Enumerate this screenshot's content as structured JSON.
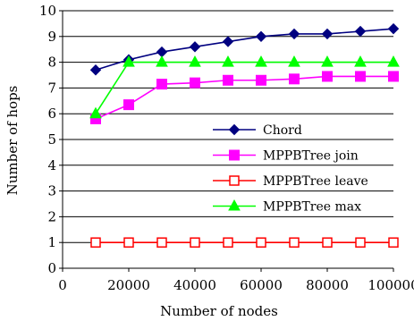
{
  "chart_data": {
    "type": "line",
    "title": "",
    "xlabel": "Number of nodes",
    "ylabel": "Number of hops",
    "xlim": [
      0,
      100000
    ],
    "ylim": [
      0,
      10
    ],
    "xticks": [
      0,
      20000,
      40000,
      60000,
      80000,
      100000
    ],
    "yticks": [
      0,
      1,
      2,
      3,
      4,
      5,
      6,
      7,
      8,
      9,
      10
    ],
    "grid": "horizontal",
    "legend_position": "bottom-right",
    "x": [
      10000,
      20000,
      30000,
      40000,
      50000,
      60000,
      70000,
      80000,
      90000,
      100000
    ],
    "series": [
      {
        "name": "Chord",
        "color": "#000080",
        "marker": "diamond-filled",
        "values": [
          7.7,
          8.1,
          8.4,
          8.6,
          8.8,
          9.0,
          9.1,
          9.1,
          9.2,
          9.3
        ]
      },
      {
        "name": "MPPBTree join",
        "color": "#ff00ff",
        "marker": "square-filled",
        "values": [
          5.8,
          6.35,
          7.15,
          7.2,
          7.3,
          7.3,
          7.35,
          7.45,
          7.45,
          7.45
        ]
      },
      {
        "name": "MPPBTree leave",
        "color": "#ff0000",
        "marker": "square-open",
        "values": [
          1,
          1,
          1,
          1,
          1,
          1,
          1,
          1,
          1,
          1
        ]
      },
      {
        "name": "MPPBTree max",
        "color": "#00ff00",
        "marker": "triangle-filled",
        "values": [
          6,
          8,
          8,
          8,
          8,
          8,
          8,
          8,
          8,
          8
        ]
      }
    ]
  }
}
